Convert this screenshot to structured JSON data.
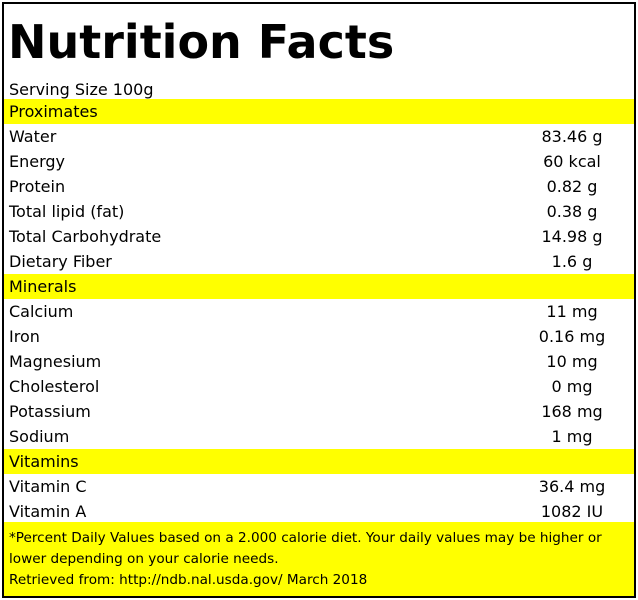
{
  "title": "Nutrition Facts",
  "serving_size": "Serving Size 100g",
  "colors": {
    "highlight": "#ffff00",
    "border": "#000000"
  },
  "sections": [
    {
      "header": "Proximates",
      "rows": [
        {
          "name": "Water",
          "value": "83.46 g"
        },
        {
          "name": "Energy",
          "value": "60 kcal"
        },
        {
          "name": "Protein",
          "value": "0.82 g"
        },
        {
          "name": "Total lipid (fat)",
          "value": "0.38 g"
        },
        {
          "name": "Total Carbohydrate",
          "value": "14.98 g"
        },
        {
          "name": "Dietary Fiber",
          "value": "1.6 g"
        }
      ]
    },
    {
      "header": "Minerals",
      "rows": [
        {
          "name": "Calcium",
          "value": "11 mg"
        },
        {
          "name": "Iron",
          "value": "0.16 mg"
        },
        {
          "name": "Magnesium",
          "value": "10 mg"
        },
        {
          "name": "Cholesterol",
          "value": "0 mg"
        },
        {
          "name": "Potassium",
          "value": "168 mg"
        },
        {
          "name": "Sodium",
          "value": "1 mg"
        }
      ]
    },
    {
      "header": "Vitamins",
      "rows": [
        {
          "name": "Vitamin C",
          "value": "36.4 mg"
        },
        {
          "name": "Vitamin A",
          "value": "1082 IU"
        }
      ]
    }
  ],
  "footnote": {
    "line1": "*Percent Daily Values based on a 2.000 calorie diet. Your daily values may be higher or",
    "line2": "lower depending on your calorie needs.",
    "line3": "Retrieved from: http://ndb.nal.usda.gov/ March 2018"
  }
}
